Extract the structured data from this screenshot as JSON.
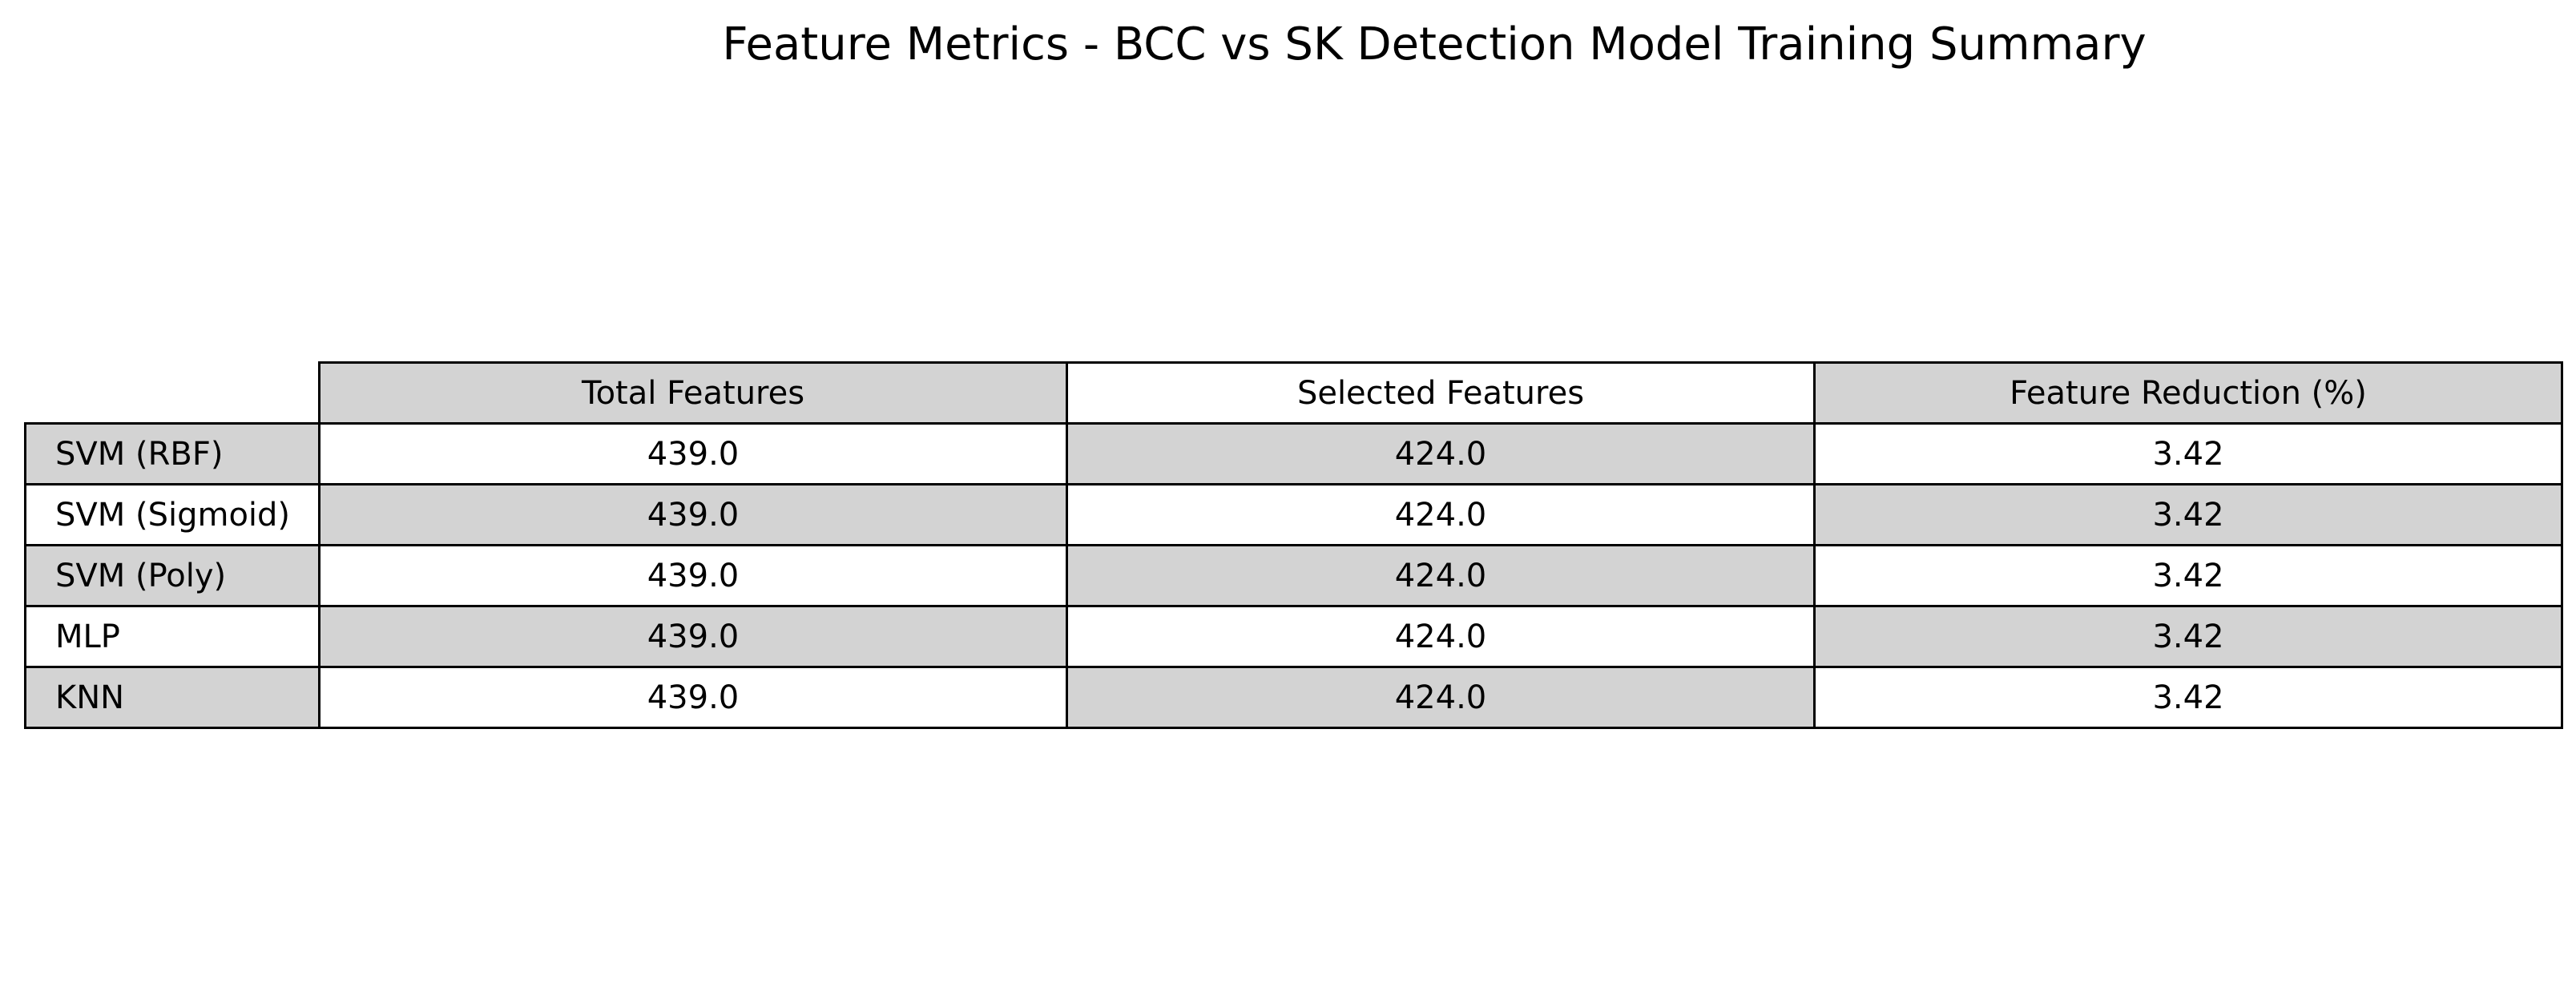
{
  "chart_data": {
    "type": "table",
    "title": "Feature Metrics - BCC vs SK Detection Model Training Summary",
    "columns": [
      "Total Features",
      "Selected Features",
      "Feature Reduction (%)"
    ],
    "rows": [
      {
        "label": "SVM (RBF)",
        "values": [
          "439.0",
          "424.0",
          "3.42"
        ]
      },
      {
        "label": "SVM (Sigmoid)",
        "values": [
          "439.0",
          "424.0",
          "3.42"
        ]
      },
      {
        "label": "SVM (Poly)",
        "values": [
          "439.0",
          "424.0",
          "3.42"
        ]
      },
      {
        "label": "MLP",
        "values": [
          "439.0",
          "424.0",
          "3.42"
        ]
      },
      {
        "label": "KNN",
        "values": [
          "439.0",
          "424.0",
          "3.42"
        ]
      }
    ]
  },
  "colors": {
    "shade": "#d3d3d3",
    "plain": "#ffffff",
    "border": "#000000"
  }
}
